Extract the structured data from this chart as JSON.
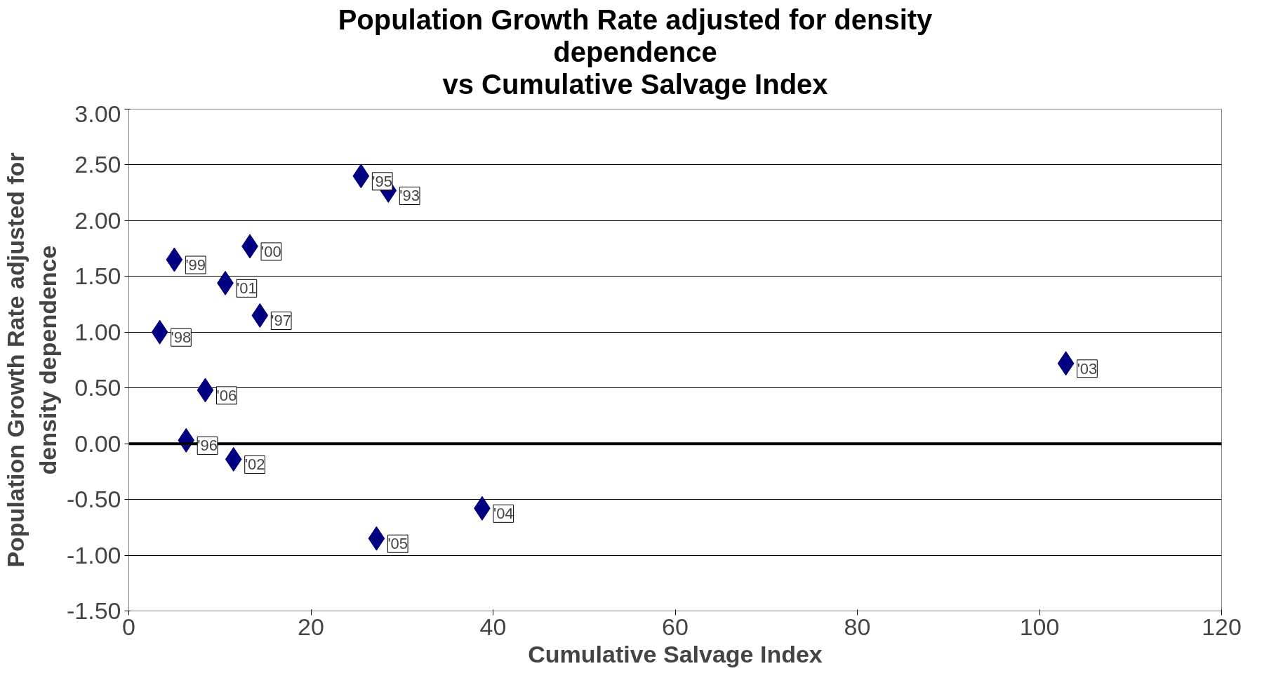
{
  "chart_data": {
    "type": "scatter",
    "title": "Population Growth Rate adjusted for density\ndependence\nvs Cumulative Salvage Index",
    "xlabel": "Cumulative Salvage Index",
    "ylabel": "Population Growth Rate adjusted for\ndensity dependence",
    "x": [
      25.5,
      28.5,
      13.3,
      5.0,
      10.6,
      14.4,
      3.4,
      8.4,
      6.3,
      11.5,
      102.9,
      38.8,
      27.2
    ],
    "series": [
      {
        "color": "#000080",
        "values": [
          2.4,
          2.27,
          1.77,
          1.65,
          1.44,
          1.15,
          1.0,
          0.48,
          0.03,
          -0.14,
          0.72,
          -0.58,
          -0.85
        ]
      }
    ],
    "marker": "diamond",
    "annotations": [
      {
        "text": "'95",
        "x": 25.5,
        "y": 2.4
      },
      {
        "text": "'93",
        "x": 28.5,
        "y": 2.27
      },
      {
        "text": "'00",
        "x": 13.3,
        "y": 1.77
      },
      {
        "text": "'99",
        "x": 5.0,
        "y": 1.65
      },
      {
        "text": "'01",
        "x": 10.6,
        "y": 1.44
      },
      {
        "text": "'97",
        "x": 14.4,
        "y": 1.15
      },
      {
        "text": "'98",
        "x": 3.4,
        "y": 1.0
      },
      {
        "text": "'06",
        "x": 8.4,
        "y": 0.48
      },
      {
        "text": "'96",
        "x": 6.3,
        "y": 0.03
      },
      {
        "text": "'02",
        "x": 11.5,
        "y": -0.14
      },
      {
        "text": "'03",
        "x": 102.9,
        "y": 0.72
      },
      {
        "text": "'04",
        "x": 38.8,
        "y": -0.58
      },
      {
        "text": "'05",
        "x": 27.2,
        "y": -0.85
      }
    ],
    "xlim": [
      0,
      120
    ],
    "xticks": [
      0,
      20,
      40,
      60,
      80,
      100,
      120
    ],
    "ylim": [
      -1.5,
      3.0
    ],
    "yticks": [
      {
        "value": -1.5,
        "label": "-1.50"
      },
      {
        "value": -1.0,
        "label": "-1.00"
      },
      {
        "value": -0.5,
        "label": "-0.50"
      },
      {
        "value": 0,
        "label": "0.00"
      },
      {
        "value": 0.5,
        "label": "0.50"
      },
      {
        "value": 1.0,
        "label": "1.00"
      },
      {
        "value": 1.5,
        "label": "1.50"
      },
      {
        "value": 2.0,
        "label": "2.00"
      },
      {
        "value": 2.5,
        "label": "2.50"
      },
      {
        "value": 3.0,
        "label": "3.00"
      }
    ],
    "grid": "y"
  }
}
